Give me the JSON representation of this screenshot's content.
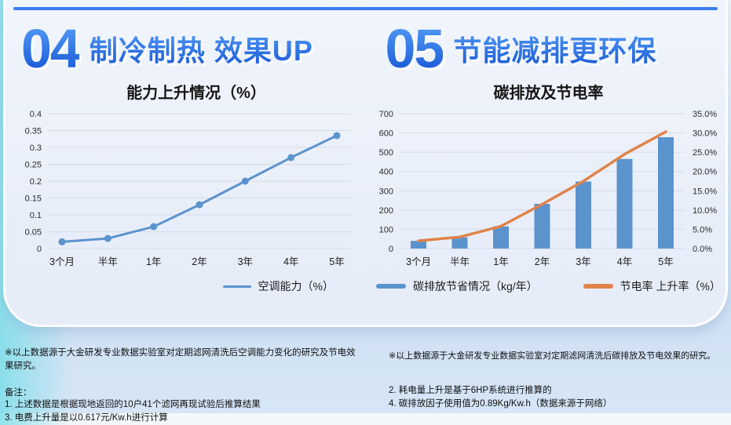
{
  "accent": {
    "top_rule_color": "#3b7ef0",
    "title_blue": "#2a72e4",
    "bar_blue": "#5b93cd",
    "line_orange": "#e0834a",
    "card_bg": "#e9eef9"
  },
  "sections": [
    {
      "number": "04",
      "title": "制冷制热 效果UP"
    },
    {
      "number": "05",
      "title": "节能减排更环保"
    }
  ],
  "chart_data": [
    {
      "type": "line",
      "title": "能力上升情况（%）",
      "categories": [
        "3个月",
        "半年",
        "1年",
        "2年",
        "3年",
        "4年",
        "5年"
      ],
      "values": [
        0.02,
        0.03,
        0.065,
        0.13,
        0.2,
        0.27,
        0.335
      ],
      "ylim": [
        0,
        0.4
      ],
      "y_ticks": [
        "0.4",
        "0.35",
        "0.3",
        "0.25",
        "0.2",
        "0.15",
        "0.1",
        "0.05",
        "0"
      ],
      "grid": true,
      "color": "#5b93cd",
      "legend_position": "bottom",
      "legend": [
        {
          "label": "空调能力（%）",
          "color": "#5b93cd"
        }
      ]
    },
    {
      "type": "combo_bar_line",
      "title": "碳排放及节电率",
      "categories": [
        "3个月",
        "半年",
        "1年",
        "2年",
        "3年",
        "4年",
        "5年"
      ],
      "series": [
        {
          "name": "碳排放节省情况（kg/年）",
          "type": "bar",
          "axis": "left",
          "color": "#5b93cd",
          "values": [
            40,
            58,
            115,
            232,
            348,
            465,
            578
          ]
        },
        {
          "name": "节电率 上升率（%）",
          "type": "line",
          "axis": "right",
          "color": "#e0834a",
          "values": [
            2.0,
            3.0,
            5.8,
            11.5,
            17.5,
            24.5,
            30.3
          ]
        }
      ],
      "left_ylim": [
        0,
        700
      ],
      "right_ylim": [
        0,
        35
      ],
      "left_y_ticks": [
        "700",
        "600",
        "500",
        "400",
        "300",
        "200",
        "100",
        "0"
      ],
      "right_y_ticks": [
        "35.0%",
        "30.0%",
        "25.0%",
        "20.0%",
        "15.0%",
        "10.0%",
        "5.0%",
        "0.0%"
      ],
      "grid": true,
      "legend_position": "bottom"
    }
  ],
  "footnotes": {
    "left_source": "※以上数据源于大金研发专业数据实验室对定期滤网清洗后空调能力变化的研究及节电效果研究。",
    "left_note_title": "备注：",
    "left_notes": [
      "1. 上述数据是根据现地返回的10户41个滤网再现试验后推算结果",
      "3. 电费上升量是以0.617元/Kw.h进行计算"
    ],
    "right_source": "※以上数据源于大金研发专业数据实验室对定期滤网清洗后碳排放及节电效果的研究。",
    "right_notes": [
      "2. 耗电量上升是基于6HP系统进行推算的",
      "4. 碳排放因子使用值为0.89Kg/Kw.h（数据来源于网络）"
    ]
  }
}
